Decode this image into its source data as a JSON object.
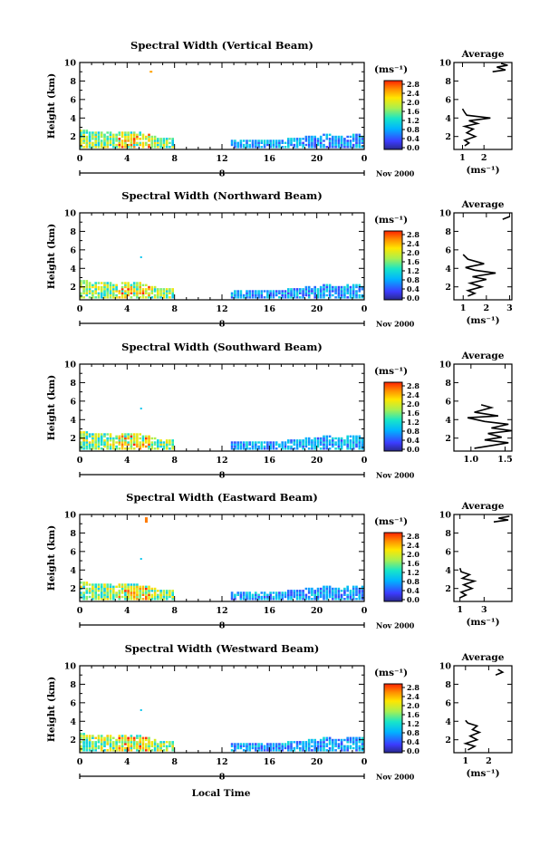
{
  "chart_data": [
    {
      "type": "heatmap",
      "title": "Spectral Width (Vertical Beam)",
      "ylabel": "Height (km)",
      "x_ticks": [
        "0",
        "4",
        "8",
        "12",
        "16",
        "20",
        "0"
      ],
      "xlim": [
        0,
        24
      ],
      "ylim": [
        0.6,
        10
      ],
      "y_ticks": [
        "2",
        "4",
        "6",
        "8",
        "10"
      ],
      "date_label": "8",
      "date_suffix": "Nov 2000",
      "colorbar": {
        "label": "(ms⁻¹)",
        "ticks": [
          "2.8",
          "2.4",
          "2.0",
          "1.6",
          "1.2",
          "0.8",
          "0.4",
          "0.0"
        ]
      },
      "average": {
        "title": "Average",
        "xlabel": "(ms⁻¹)",
        "x_ticks": [
          "1",
          "2"
        ],
        "xlim": [
          0.6,
          3.3
        ],
        "profile": [
          [
            1.1,
            1.0
          ],
          [
            1.3,
            1.3
          ],
          [
            1.1,
            1.6
          ],
          [
            1.6,
            2.0
          ],
          [
            1.2,
            2.4
          ],
          [
            1.5,
            2.8
          ],
          [
            1.1,
            3.1
          ],
          [
            1.7,
            3.4
          ],
          [
            1.3,
            3.7
          ],
          [
            2.3,
            4.0
          ],
          [
            1.2,
            4.3
          ],
          [
            1.1,
            4.6
          ],
          [
            1.0,
            5.0
          ]
        ],
        "profile_top": [
          [
            2.4,
            9.0
          ],
          [
            3.0,
            9.2
          ],
          [
            2.6,
            9.5
          ],
          [
            3.1,
            9.7
          ],
          [
            2.8,
            9.9
          ]
        ]
      }
    },
    {
      "type": "heatmap",
      "title": "Spectral Width (Northward Beam)",
      "ylabel": "Height (km)",
      "x_ticks": [
        "0",
        "4",
        "8",
        "12",
        "16",
        "20",
        "0"
      ],
      "xlim": [
        0,
        24
      ],
      "ylim": [
        0.6,
        10
      ],
      "y_ticks": [
        "2",
        "4",
        "6",
        "8",
        "10"
      ],
      "date_label": "8",
      "date_suffix": "Nov 2000",
      "colorbar": {
        "label": "(ms⁻¹)",
        "ticks": [
          "2.8",
          "2.4",
          "2.0",
          "1.6",
          "1.2",
          "0.8",
          "0.4",
          "0.0"
        ]
      },
      "average": {
        "title": "Average",
        "xlabel": "(ms⁻¹)",
        "x_ticks": [
          "1",
          "2",
          "3"
        ],
        "xlim": [
          0.6,
          3.1
        ],
        "profile": [
          [
            1.2,
            1.0
          ],
          [
            1.5,
            1.3
          ],
          [
            1.2,
            1.6
          ],
          [
            1.8,
            2.0
          ],
          [
            1.3,
            2.4
          ],
          [
            2.0,
            2.8
          ],
          [
            1.4,
            3.1
          ],
          [
            2.4,
            3.5
          ],
          [
            1.5,
            3.8
          ],
          [
            1.1,
            4.1
          ],
          [
            1.9,
            4.5
          ],
          [
            1.2,
            5.0
          ],
          [
            1.0,
            5.5
          ]
        ],
        "profile_top": [
          [
            2.7,
            9.3
          ],
          [
            3.0,
            9.6
          ]
        ]
      }
    },
    {
      "type": "heatmap",
      "title": "Spectral Width (Southward Beam)",
      "ylabel": "Height (km)",
      "x_ticks": [
        "0",
        "4",
        "8",
        "12",
        "16",
        "20",
        "0"
      ],
      "xlim": [
        0,
        24
      ],
      "ylim": [
        0.6,
        10
      ],
      "y_ticks": [
        "2",
        "4",
        "6",
        "8",
        "10"
      ],
      "date_label": "8",
      "date_suffix": "Nov 2000",
      "colorbar": {
        "label": "(ms⁻¹)",
        "ticks": [
          "2.8",
          "2.4",
          "2.0",
          "1.6",
          "1.2",
          "0.8",
          "0.4",
          "0.0"
        ]
      },
      "average": {
        "title": "Average",
        "xlabel": "",
        "x_ticks": [
          "1.0",
          "1.5"
        ],
        "xlim": [
          0.75,
          1.6
        ],
        "profile": [
          [
            1.05,
            0.9
          ],
          [
            1.3,
            1.2
          ],
          [
            1.55,
            1.5
          ],
          [
            1.2,
            1.8
          ],
          [
            1.45,
            2.1
          ],
          [
            1.25,
            2.5
          ],
          [
            1.6,
            2.8
          ],
          [
            1.3,
            3.1
          ],
          [
            1.55,
            3.5
          ],
          [
            1.2,
            3.8
          ],
          [
            0.95,
            4.2
          ],
          [
            1.4,
            4.4
          ],
          [
            1.05,
            4.8
          ],
          [
            1.3,
            5.3
          ],
          [
            1.15,
            5.6
          ]
        ],
        "profile_top": []
      }
    },
    {
      "type": "heatmap",
      "title": "Spectral Width (Eastward Beam)",
      "ylabel": "Height (km)",
      "x_ticks": [
        "0",
        "4",
        "8",
        "12",
        "16",
        "20",
        "0"
      ],
      "xlim": [
        0,
        24
      ],
      "ylim": [
        0.6,
        10
      ],
      "y_ticks": [
        "2",
        "4",
        "6",
        "8",
        "10"
      ],
      "date_label": "8",
      "date_suffix": "Nov 2000",
      "colorbar": {
        "label": "(ms⁻¹)",
        "ticks": [
          "2.8",
          "2.4",
          "2.0",
          "1.6",
          "1.2",
          "0.8",
          "0.4",
          "0.0"
        ]
      },
      "average": {
        "title": "Average",
        "xlabel": "(ms⁻¹)",
        "x_ticks": [
          "1",
          "3"
        ],
        "xlim": [
          0.5,
          5.3
        ],
        "profile": [
          [
            1.0,
            1.0
          ],
          [
            1.5,
            1.3
          ],
          [
            1.1,
            1.6
          ],
          [
            2.0,
            2.0
          ],
          [
            1.3,
            2.4
          ],
          [
            2.2,
            2.8
          ],
          [
            1.2,
            3.1
          ],
          [
            1.8,
            3.5
          ],
          [
            1.1,
            3.8
          ],
          [
            1.0,
            4.2
          ]
        ],
        "profile_top": [
          [
            3.8,
            9.2
          ],
          [
            5.0,
            9.4
          ],
          [
            4.2,
            9.6
          ],
          [
            5.1,
            9.8
          ]
        ]
      }
    },
    {
      "type": "heatmap",
      "title": "Spectral Width (Westward Beam)",
      "ylabel": "Height (km)",
      "x_ticks": [
        "0",
        "4",
        "8",
        "12",
        "16",
        "20",
        "0"
      ],
      "xlim": [
        0,
        24
      ],
      "ylim": [
        0.6,
        10
      ],
      "y_ticks": [
        "2",
        "4",
        "6",
        "8",
        "10"
      ],
      "date_label": "8",
      "date_suffix": "Nov 2000",
      "colorbar": {
        "label": "(ms⁻¹)",
        "ticks": [
          "2.8",
          "2.4",
          "2.0",
          "1.6",
          "1.2",
          "0.8",
          "0.4",
          "0.0"
        ]
      },
      "average": {
        "title": "Average",
        "xlabel": "(ms⁻¹)",
        "x_ticks": [
          "1",
          "2"
        ],
        "xlim": [
          0.5,
          3.0
        ],
        "profile": [
          [
            1.1,
            0.9
          ],
          [
            1.4,
            1.3
          ],
          [
            1.0,
            1.6
          ],
          [
            1.5,
            2.0
          ],
          [
            1.2,
            2.4
          ],
          [
            1.6,
            2.8
          ],
          [
            1.3,
            3.1
          ],
          [
            1.5,
            3.5
          ],
          [
            1.1,
            3.8
          ],
          [
            1.0,
            4.1
          ]
        ],
        "profile_top": [
          [
            2.3,
            9.0
          ],
          [
            2.6,
            9.3
          ],
          [
            2.4,
            9.6
          ]
        ]
      }
    }
  ],
  "footer": {
    "xlabel": "Local Time"
  }
}
